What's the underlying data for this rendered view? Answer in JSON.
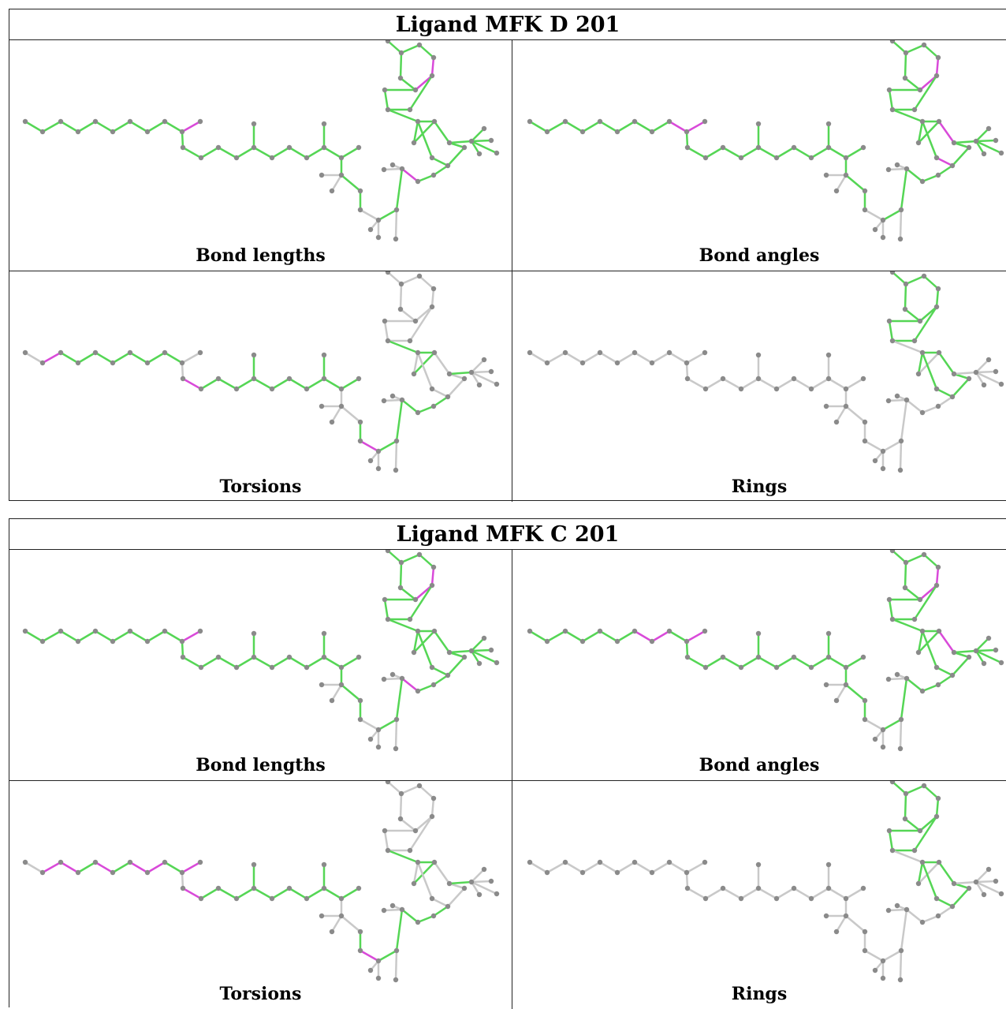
{
  "colors": {
    "ok": "#55d655",
    "outlier": "#d94ad9",
    "neutral": "#c9c9c9",
    "atom": "#8a8a8a"
  },
  "tables": [
    {
      "title": "Ligand MFK D 201",
      "panels": [
        {
          "caption": "Bond lengths",
          "mode": "lengths",
          "outliers": [
            [
              9,
              10
            ],
            [
              37,
              38
            ],
            [
              38,
              39
            ],
            [
              41,
              47
            ],
            [
              52,
              53
            ]
          ]
        },
        {
          "caption": "Bond angles",
          "mode": "angles",
          "outliers": [
            [
              8,
              9
            ],
            [
              9,
              10
            ],
            [
              37,
              38
            ],
            [
              38,
              39
            ],
            [
              46,
              47
            ],
            [
              49,
              50
            ]
          ]
        },
        {
          "caption": "Torsions",
          "mode": "torsions",
          "outliers": [
            [
              1,
              2
            ],
            [
              11,
              12
            ],
            [
              31,
              32
            ],
            [
              28,
              29
            ]
          ]
        },
        {
          "caption": "Rings",
          "mode": "rings",
          "outliers": []
        }
      ]
    },
    {
      "title": "Ligand MFK C 201",
      "panels": [
        {
          "caption": "Bond lengths",
          "mode": "lengths",
          "outliers": [
            [
              9,
              10
            ],
            [
              37,
              38
            ],
            [
              38,
              39
            ],
            [
              41,
              47
            ],
            [
              52,
              53
            ]
          ]
        },
        {
          "caption": "Bond angles",
          "mode": "angles",
          "outliers": [
            [
              6,
              7
            ],
            [
              7,
              8
            ],
            [
              9,
              10
            ],
            [
              37,
              38
            ],
            [
              38,
              39
            ],
            [
              46,
              47
            ],
            [
              26,
              27
            ],
            [
              30,
              31
            ],
            [
              31,
              32
            ]
          ]
        },
        {
          "caption": "Torsions",
          "mode": "torsions",
          "outliers": [
            [
              1,
              2
            ],
            [
              2,
              3
            ],
            [
              4,
              5
            ],
            [
              6,
              7
            ],
            [
              7,
              8
            ],
            [
              9,
              10
            ],
            [
              11,
              12
            ],
            [
              31,
              32
            ],
            [
              28,
              29
            ],
            [
              47,
              52
            ]
          ]
        },
        {
          "caption": "Rings",
          "mode": "rings",
          "outliers": []
        }
      ]
    }
  ]
}
